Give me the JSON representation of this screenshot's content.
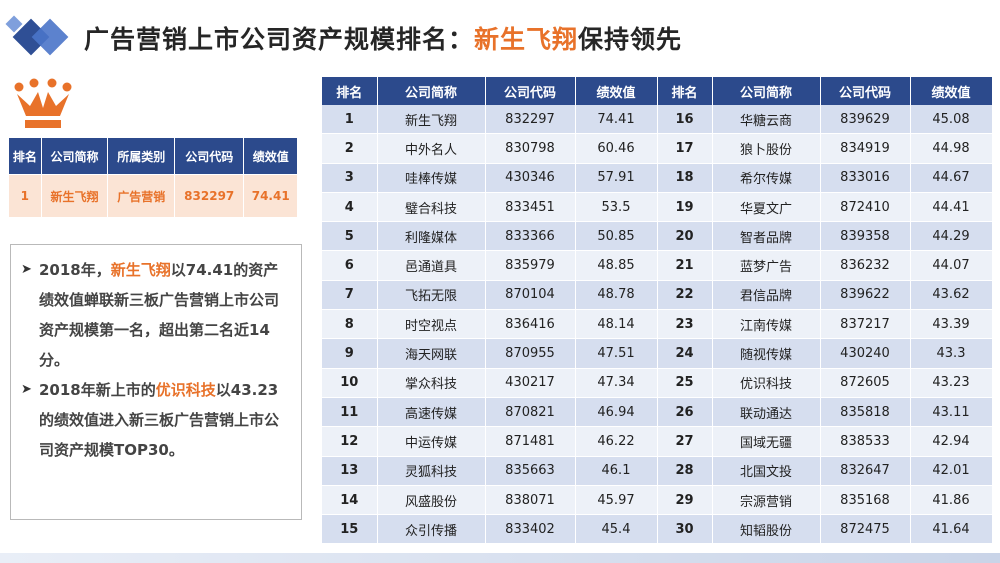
{
  "title": {
    "main": "广告营销上市公司资产规模排名：",
    "highlight": "新生飞翔",
    "tail": "保持领先"
  },
  "top1": {
    "headers": [
      "排名",
      "公司简称",
      "所属类别",
      "公司代码",
      "绩效值"
    ],
    "row": [
      "1",
      "新生飞翔",
      "广告营销",
      "832297",
      "74.41"
    ]
  },
  "notes": {
    "p1_a": "2018年，",
    "p1_hl": "新生飞翔",
    "p1_b": "以74.41的资产绩效值蝉联新三板广告营销上市公司资产规模第一名，超出第二名近14分。",
    "p2_a": "2018年新上市的",
    "p2_hl": "优识科技",
    "p2_b": "以43.23的绩效值进入新三板广告营销上市公司资产规模TOP30。"
  },
  "ranking": {
    "headers": [
      "排名",
      "公司简称",
      "公司代码",
      "绩效值",
      "排名",
      "公司简称",
      "公司代码",
      "绩效值"
    ],
    "rows": [
      [
        "1",
        "新生飞翔",
        "832297",
        "74.41",
        "16",
        "华糖云商",
        "839629",
        "45.08"
      ],
      [
        "2",
        "中外名人",
        "830798",
        "60.46",
        "17",
        "狼卜股份",
        "834919",
        "44.98"
      ],
      [
        "3",
        "哇棒传媒",
        "430346",
        "57.91",
        "18",
        "希尔传媒",
        "833016",
        "44.67"
      ],
      [
        "4",
        "璧合科技",
        "833451",
        "53.5",
        "19",
        "华夏文广",
        "872410",
        "44.41"
      ],
      [
        "5",
        "利隆媒体",
        "833366",
        "50.85",
        "20",
        "智者品牌",
        "839358",
        "44.29"
      ],
      [
        "6",
        "邑通道具",
        "835979",
        "48.85",
        "21",
        "蓝梦广告",
        "836232",
        "44.07"
      ],
      [
        "7",
        "飞拓无限",
        "870104",
        "48.78",
        "22",
        "君信品牌",
        "839622",
        "43.62"
      ],
      [
        "8",
        "时空视点",
        "836416",
        "48.14",
        "23",
        "江南传媒",
        "837217",
        "43.39"
      ],
      [
        "9",
        "海天网联",
        "870955",
        "47.51",
        "24",
        "随视传媒",
        "430240",
        "43.3"
      ],
      [
        "10",
        "掌众科技",
        "430217",
        "47.34",
        "25",
        "优识科技",
        "872605",
        "43.23"
      ],
      [
        "11",
        "高速传媒",
        "870821",
        "46.94",
        "26",
        "联动通达",
        "835818",
        "43.11"
      ],
      [
        "12",
        "中运传媒",
        "871481",
        "46.22",
        "27",
        "国域无疆",
        "838533",
        "42.94"
      ],
      [
        "13",
        "灵狐科技",
        "835663",
        "46.1",
        "28",
        "北国文投",
        "832647",
        "42.01"
      ],
      [
        "14",
        "风盛股份",
        "838071",
        "45.97",
        "29",
        "宗源营销",
        "835168",
        "41.86"
      ],
      [
        "15",
        "众引传播",
        "833402",
        "45.4",
        "30",
        "知韬股份",
        "872475",
        "41.64"
      ]
    ]
  },
  "colors": {
    "header_bg": "#2c4a8c",
    "accent_orange": "#e8722a",
    "row_odd": "#d6deef",
    "row_even": "#edf1f8"
  }
}
